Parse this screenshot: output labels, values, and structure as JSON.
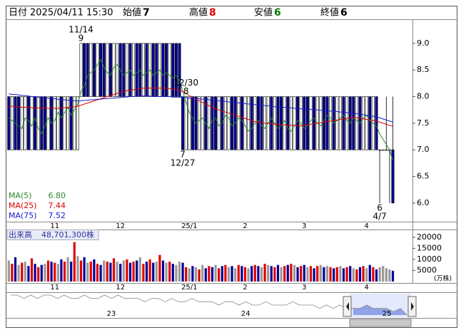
{
  "header": {
    "date_label": "日付",
    "datetime": "2025/04/11 15:30",
    "open_label": "始値",
    "open": 7,
    "high_label": "高値",
    "high": 8,
    "low_label": "安値",
    "low": 6,
    "close_label": "終値",
    "close": 6
  },
  "chart_data": [
    {
      "type": "candlestick",
      "categories": [
        null,
        null,
        null,
        null,
        null,
        null,
        null,
        null,
        null,
        null,
        null,
        null,
        null,
        null,
        "11",
        null,
        null,
        null,
        null,
        null,
        null,
        null,
        null,
        null,
        null,
        null,
        null,
        null,
        null,
        null,
        null,
        null,
        null,
        null,
        "12",
        null,
        null,
        null,
        null,
        null,
        null,
        null,
        null,
        null,
        null,
        null,
        null,
        null,
        null,
        null,
        null,
        null,
        null,
        null,
        null,
        "25/1",
        null,
        null,
        null,
        null,
        null,
        null,
        null,
        null,
        null,
        null,
        null,
        null,
        null,
        null,
        null,
        null,
        "2",
        null,
        null,
        null,
        null,
        null,
        null,
        null,
        null,
        null,
        null,
        null,
        null,
        null,
        null,
        null,
        null,
        null,
        "3",
        null,
        null,
        null,
        null,
        null,
        null,
        null,
        null,
        null,
        null,
        null,
        null,
        null,
        null,
        null,
        null,
        null,
        null,
        "4",
        null,
        null,
        null,
        null,
        null,
        null,
        null,
        null
      ],
      "open": [
        8,
        7,
        8,
        8,
        7,
        7,
        8,
        7,
        8,
        7,
        8,
        8,
        7,
        8,
        7,
        7,
        8,
        7,
        7,
        8,
        7,
        7,
        8,
        9,
        9,
        8,
        9,
        8,
        9,
        9,
        8,
        9,
        8,
        8,
        9,
        9,
        8,
        9,
        8,
        9,
        9,
        8,
        9,
        8,
        9,
        9,
        8,
        9,
        9,
        8,
        9,
        9,
        9,
        8,
        7,
        7,
        8,
        8,
        7,
        7,
        8,
        7,
        8,
        8,
        7,
        8,
        7,
        7,
        8,
        8,
        7,
        8,
        7,
        7,
        8,
        7,
        8,
        8,
        7,
        7,
        8,
        7,
        8,
        8,
        7,
        8,
        7,
        7,
        8,
        7,
        8,
        8,
        7,
        8,
        7,
        7,
        8,
        8,
        7,
        8,
        7,
        7,
        8,
        7,
        8,
        8,
        7,
        8,
        7,
        7,
        8,
        7,
        8,
        7,
        7,
        7,
        7,
        7
      ],
      "high": [
        8,
        8,
        8,
        8,
        8,
        8,
        8,
        8,
        8,
        8,
        8,
        8,
        8,
        8,
        8,
        8,
        8,
        8,
        8,
        8,
        8,
        8,
        9,
        9,
        9,
        9,
        9,
        9,
        9,
        9,
        9,
        9,
        9,
        9,
        9,
        9,
        9,
        9,
        9,
        9,
        9,
        9,
        9,
        9,
        9,
        9,
        9,
        9,
        9,
        9,
        9,
        9,
        9,
        8,
        8,
        8,
        8,
        8,
        8,
        8,
        8,
        8,
        8,
        8,
        8,
        8,
        8,
        8,
        8,
        8,
        8,
        8,
        8,
        8,
        8,
        8,
        8,
        8,
        8,
        8,
        8,
        8,
        8,
        8,
        8,
        8,
        8,
        8,
        8,
        8,
        8,
        8,
        8,
        8,
        8,
        8,
        8,
        8,
        8,
        8,
        8,
        8,
        8,
        8,
        8,
        8,
        8,
        8,
        8,
        8,
        8,
        8,
        8,
        7,
        7,
        8,
        7,
        8
      ],
      "low": [
        7,
        7,
        7,
        7,
        7,
        7,
        7,
        7,
        7,
        7,
        7,
        7,
        7,
        7,
        7,
        7,
        7,
        7,
        7,
        7,
        7,
        7,
        8,
        8,
        8,
        8,
        8,
        8,
        8,
        8,
        8,
        8,
        8,
        8,
        8,
        8,
        8,
        8,
        8,
        8,
        8,
        8,
        8,
        8,
        8,
        8,
        8,
        8,
        8,
        8,
        8,
        8,
        8,
        7,
        7,
        7,
        7,
        7,
        7,
        7,
        7,
        7,
        7,
        7,
        7,
        7,
        7,
        7,
        7,
        7,
        7,
        7,
        7,
        7,
        7,
        7,
        7,
        7,
        7,
        7,
        7,
        7,
        7,
        7,
        7,
        7,
        7,
        7,
        7,
        7,
        7,
        7,
        7,
        7,
        7,
        7,
        7,
        7,
        7,
        7,
        7,
        7,
        7,
        7,
        7,
        7,
        7,
        7,
        7,
        7,
        7,
        7,
        7,
        6,
        7,
        7,
        6,
        6
      ],
      "close": [
        7,
        8,
        7,
        7,
        8,
        8,
        7,
        8,
        7,
        8,
        7,
        7,
        8,
        7,
        8,
        8,
        7,
        8,
        8,
        7,
        8,
        8,
        9,
        8,
        8,
        9,
        8,
        9,
        8,
        8,
        9,
        8,
        9,
        9,
        8,
        8,
        9,
        8,
        9,
        8,
        8,
        9,
        8,
        9,
        8,
        8,
        9,
        8,
        8,
        9,
        8,
        8,
        8,
        7,
        8,
        8,
        7,
        7,
        8,
        8,
        7,
        8,
        7,
        7,
        8,
        7,
        8,
        8,
        7,
        7,
        8,
        7,
        8,
        8,
        7,
        8,
        7,
        7,
        8,
        8,
        7,
        8,
        7,
        7,
        8,
        7,
        8,
        8,
        7,
        8,
        7,
        7,
        8,
        7,
        8,
        8,
        7,
        7,
        8,
        7,
        8,
        8,
        7,
        8,
        7,
        7,
        8,
        7,
        8,
        8,
        7,
        8,
        7,
        7,
        7,
        7,
        7,
        6
      ],
      "up_color": "#ffffff",
      "down_color": "#000099",
      "ylim": [
        5.65,
        9.44
      ],
      "yticks": [
        {
          "value": 6,
          "label": "6.0"
        },
        6.5,
        {
          "value": 7,
          "label": "7.0"
        },
        7.5,
        {
          "value": 8,
          "label": "8.0"
        },
        8.5,
        {
          "value": 9,
          "label": "9.0"
        }
      ],
      "annotations": [
        {
          "label": "11/14",
          "value": 9
        },
        {
          "label": "12/30",
          "value": 8
        },
        {
          "label": "12/27",
          "value": 7
        },
        {
          "label": "4/7",
          "value": 6
        }
      ],
      "series": [
        {
          "name": "MA(5)",
          "color": "#2a8a2a",
          "legend_value": {
            "value": 6.8,
            "label": "6.80"
          },
          "values": [
            7.6,
            7.55,
            7.5,
            7.45,
            7.4,
            7.6,
            7.55,
            7.45,
            7.6,
            7.4,
            7.3,
            7.45,
            7.6,
            7.5,
            7.55,
            7.7,
            7.6,
            7.7,
            7.8,
            7.65,
            7.75,
            7.85,
            8.1,
            8.2,
            8.4,
            8.45,
            8.5,
            8.6,
            8.7,
            8.55,
            8.45,
            8.4,
            8.55,
            8.6,
            8.5,
            8.4,
            8.45,
            8.5,
            8.4,
            8.45,
            8.5,
            8.4,
            8.45,
            8.5,
            8.4,
            8.45,
            8.5,
            8.4,
            8.45,
            8.4,
            8.35,
            8.4,
            8.3,
            8.1,
            7.9,
            7.7,
            7.6,
            7.5,
            7.55,
            7.6,
            7.5,
            7.4,
            7.55,
            7.6,
            7.45,
            7.5,
            7.65,
            7.6,
            7.45,
            7.5,
            7.6,
            7.55,
            7.45,
            7.35,
            7.4,
            7.5,
            7.55,
            7.45,
            7.4,
            7.5,
            7.6,
            7.5,
            7.4,
            7.45,
            7.55,
            7.4,
            7.35,
            7.45,
            7.55,
            7.5,
            7.4,
            7.45,
            7.55,
            7.6,
            7.5,
            7.45,
            7.55,
            7.65,
            7.6,
            7.5,
            7.55,
            7.6,
            7.65,
            7.55,
            7.5,
            7.6,
            7.55,
            7.5,
            7.6,
            7.65,
            7.55,
            7.5,
            7.45,
            7.3,
            7.2,
            7.1,
            7.0,
            6.8
          ]
        },
        {
          "name": "MA(25)",
          "color": "#e00000",
          "legend_value": {
            "value": 7.44,
            "label": "7.44"
          },
          "values": [
            7.82,
            7.82,
            7.81,
            7.81,
            7.8,
            7.8,
            7.8,
            7.79,
            7.79,
            7.79,
            7.78,
            7.78,
            7.78,
            7.78,
            7.78,
            7.78,
            7.79,
            7.79,
            7.8,
            7.8,
            7.81,
            7.82,
            7.84,
            7.86,
            7.88,
            7.9,
            7.92,
            7.94,
            7.96,
            7.98,
            8.0,
            8.02,
            8.04,
            8.06,
            8.08,
            8.1,
            8.11,
            8.12,
            8.13,
            8.14,
            8.15,
            8.16,
            8.16,
            8.16,
            8.16,
            8.16,
            8.16,
            8.16,
            8.15,
            8.15,
            8.14,
            8.13,
            8.12,
            8.1,
            8.06,
            8.02,
            7.98,
            7.95,
            7.92,
            7.89,
            7.86,
            7.83,
            7.8,
            7.77,
            7.75,
            7.73,
            7.71,
            7.69,
            7.67,
            7.65,
            7.63,
            7.61,
            7.59,
            7.57,
            7.55,
            7.53,
            7.52,
            7.51,
            7.5,
            7.5,
            7.49,
            7.48,
            7.48,
            7.47,
            7.47,
            7.46,
            7.46,
            7.46,
            7.45,
            7.45,
            7.46,
            7.47,
            7.48,
            7.49,
            7.5,
            7.51,
            7.52,
            7.53,
            7.54,
            7.55,
            7.56,
            7.57,
            7.58,
            7.59,
            7.6,
            7.6,
            7.6,
            7.59,
            7.58,
            7.57,
            7.56,
            7.55,
            7.54,
            7.52,
            7.5,
            7.48,
            7.46,
            7.44
          ]
        },
        {
          "name": "MA(75)",
          "color": "#1a1ad0",
          "legend_value": {
            "value": 7.52,
            "label": "7.52"
          },
          "values": [
            8.05,
            8.04,
            8.04,
            8.03,
            8.02,
            8.02,
            8.01,
            8.0,
            8.0,
            7.99,
            7.98,
            7.98,
            7.97,
            7.96,
            7.96,
            7.95,
            7.94,
            7.94,
            7.93,
            7.93,
            7.92,
            7.92,
            7.92,
            7.93,
            7.93,
            7.94,
            7.94,
            7.95,
            7.95,
            7.96,
            7.96,
            7.97,
            7.97,
            7.98,
            7.98,
            7.99,
            7.99,
            8.0,
            8.0,
            8.01,
            8.01,
            8.01,
            8.01,
            8.01,
            8.0,
            8.0,
            8.0,
            8.0,
            8.0,
            8.0,
            7.99,
            7.99,
            7.99,
            7.98,
            7.98,
            7.97,
            7.97,
            7.96,
            7.96,
            7.95,
            7.95,
            7.94,
            7.93,
            7.93,
            7.92,
            7.91,
            7.91,
            7.9,
            7.9,
            7.89,
            7.88,
            7.88,
            7.87,
            7.86,
            7.86,
            7.85,
            7.84,
            7.84,
            7.83,
            7.83,
            7.82,
            7.81,
            7.81,
            7.8,
            7.8,
            7.79,
            7.79,
            7.78,
            7.78,
            7.77,
            7.77,
            7.76,
            7.76,
            7.75,
            7.75,
            7.74,
            7.74,
            7.73,
            7.73,
            7.72,
            7.72,
            7.71,
            7.71,
            7.7,
            7.69,
            7.68,
            7.68,
            7.67,
            7.66,
            7.65,
            7.64,
            7.63,
            7.62,
            7.6,
            7.58,
            7.56,
            7.54,
            7.52
          ]
        }
      ]
    },
    {
      "type": "bar",
      "title": "出来高",
      "latest": {
        "value": 48701300,
        "label": "48,701,300株"
      },
      "unit": "(万株)",
      "color": "#999999",
      "up_color": "#e00000",
      "down_color": "#000099",
      "values": [
        9500,
        8000,
        11000,
        7500,
        8500,
        9000,
        7000,
        10500,
        8000,
        6500,
        7500,
        8000,
        9500,
        9000,
        8500,
        8000,
        10000,
        9000,
        11000,
        9000,
        17800,
        11500,
        9500,
        11000,
        8500,
        9000,
        10000,
        8000,
        7500,
        9500,
        9000,
        8500,
        10500,
        9000,
        8000,
        9500,
        10000,
        8500,
        9000,
        9500,
        11000,
        8000,
        9000,
        10000,
        8500,
        9000,
        12000,
        9500,
        8500,
        9000,
        8000,
        7500,
        9000,
        8500,
        6500,
        6000,
        7000,
        6500,
        5500,
        7500,
        6000,
        7000,
        6500,
        7500,
        6000,
        7000,
        7500,
        6500,
        7000,
        6000,
        7500,
        7000,
        6500,
        6000,
        7000,
        7500,
        7000,
        6500,
        8000,
        7500,
        7000,
        6500,
        7500,
        6500,
        7000,
        7500,
        8000,
        7500,
        6500,
        7000,
        7500,
        6500,
        7000,
        6000,
        7000,
        7500,
        6500,
        7000,
        6500,
        6000,
        6500,
        7000,
        6000,
        6500,
        7000,
        6000,
        5500,
        6500,
        7000,
        6000,
        7500,
        6500,
        5500,
        6500,
        7000,
        6000,
        5500,
        4870
      ],
      "ylim": [
        0,
        23500
      ],
      "yticks": [
        5000,
        10000,
        15000,
        20000
      ]
    },
    {
      "type": "line",
      "color": "#888888",
      "window_color": "#8fa3e6",
      "categories": [
        null,
        null,
        null,
        null,
        null,
        null,
        null,
        null,
        null,
        null,
        null,
        null,
        null,
        null,
        null,
        "23",
        null,
        null,
        null,
        null,
        null,
        null,
        null,
        null,
        null,
        null,
        null,
        null,
        null,
        null,
        null,
        null,
        null,
        null,
        null,
        "24",
        null,
        null,
        null,
        null,
        null,
        null,
        null,
        null,
        null,
        null,
        null,
        null,
        null,
        null,
        null,
        null,
        null,
        null,
        null,
        null,
        "25",
        null,
        null,
        null
      ],
      "values": [
        12,
        12,
        11,
        12,
        11,
        12,
        12,
        11,
        12,
        11,
        11,
        12,
        11,
        11,
        12,
        11,
        12,
        11,
        11,
        11,
        10,
        11,
        11,
        10,
        11,
        10,
        10,
        11,
        10,
        10,
        10,
        9,
        10,
        10,
        9,
        10,
        9,
        9,
        10,
        9,
        9,
        9,
        10,
        9,
        9,
        9,
        8,
        9,
        8,
        9,
        8,
        8,
        8,
        9,
        8,
        8,
        8,
        7,
        8,
        6
      ]
    }
  ]
}
